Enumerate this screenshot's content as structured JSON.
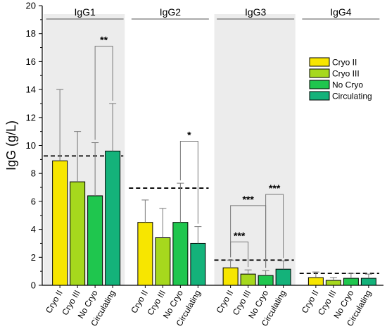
{
  "chart_data": {
    "type": "bar",
    "ylabel": "IgG (g/L)",
    "ylim": [
      0,
      20
    ],
    "yticks": [
      0,
      2,
      4,
      6,
      8,
      10,
      12,
      14,
      16,
      18,
      20
    ],
    "categories": [
      "Cryo II",
      "Cryo III",
      "No Cryo",
      "Circulating"
    ],
    "series_colors": {
      "Cryo II": "#f7e600",
      "Cryo III": "#a6d81d",
      "No Cryo": "#1fc64e",
      "Circulating": "#14b27a"
    },
    "legend": {
      "placement": "right",
      "entries": [
        "Cryo II",
        "Cryo III",
        "No Cryo",
        "Circulating"
      ]
    },
    "groups": [
      {
        "name": "IgG1",
        "shaded": true,
        "reference_line": 9.25,
        "values": [
          8.9,
          7.4,
          6.4,
          9.6
        ],
        "errors": [
          5.1,
          3.6,
          3.8,
          3.4
        ],
        "significance": [
          {
            "from": 2,
            "to": 3,
            "label": "**",
            "level": 17.1
          }
        ]
      },
      {
        "name": "IgG2",
        "shaded": false,
        "reference_line": 6.95,
        "values": [
          4.5,
          3.4,
          4.5,
          3.0
        ],
        "errors": [
          1.6,
          2.1,
          2.8,
          1.2
        ],
        "significance": [
          {
            "from": 2,
            "to": 3,
            "label": "*",
            "level": 10.3
          }
        ]
      },
      {
        "name": "IgG3",
        "shaded": true,
        "reference_line": 1.8,
        "values": [
          1.25,
          0.8,
          0.7,
          1.15
        ],
        "errors": [
          0.55,
          0.3,
          0.35,
          0.6
        ],
        "significance": [
          {
            "from": 0,
            "to": 1,
            "label": "***",
            "level": 3.1
          },
          {
            "from": 0,
            "to": 2,
            "label": "***",
            "level": 5.7
          },
          {
            "from": 2,
            "to": 3,
            "label": "***",
            "level": 6.5
          }
        ]
      },
      {
        "name": "IgG4",
        "shaded": false,
        "reference_line": 0.85,
        "values": [
          0.55,
          0.35,
          0.5,
          0.5
        ],
        "errors": [
          0.4,
          0.2,
          0.35,
          0.3
        ],
        "significance": []
      }
    ]
  }
}
